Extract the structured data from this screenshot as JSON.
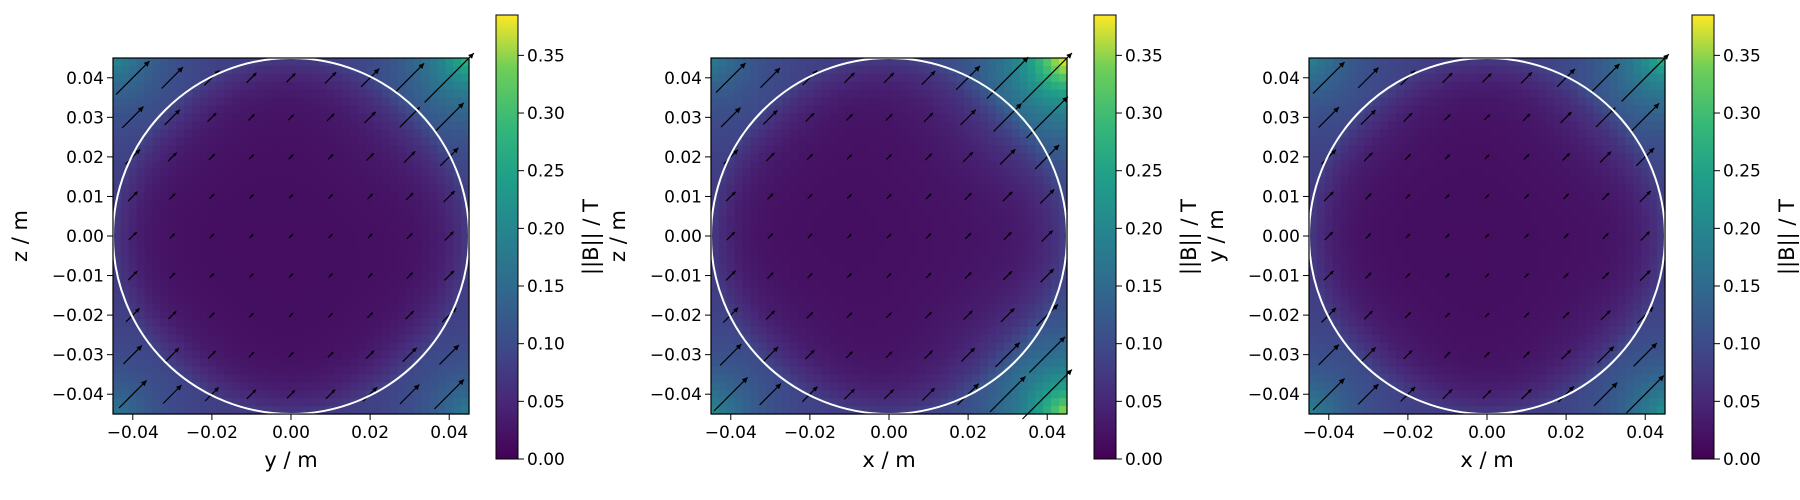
{
  "chart_data": [
    {
      "type": "heatmap",
      "title": "",
      "xlabel": "y / m",
      "ylabel": "z / m",
      "xlim": [
        -0.045,
        0.045
      ],
      "ylim": [
        -0.045,
        0.045
      ],
      "x_ticks": [
        "−0.04",
        "−0.02",
        "0.00",
        "0.02",
        "0.04"
      ],
      "y_ticks": [
        "−0.04",
        "−0.03",
        "−0.02",
        "−0.01",
        "0.00",
        "0.01",
        "0.02",
        "0.03",
        "0.04"
      ],
      "colorbar": {
        "label": "||B|| / T",
        "range": [
          0.0,
          0.385
        ],
        "ticks": [
          "0.00",
          "0.05",
          "0.10",
          "0.15",
          "0.20",
          "0.25",
          "0.30",
          "0.35"
        ],
        "colormap": "viridis"
      },
      "boundary_circle_radius": 0.045,
      "hotspots": [
        {
          "x": 0.045,
          "y": 0.045,
          "value": 0.2
        },
        {
          "x": -0.045,
          "y": 0.045,
          "value": 0.12
        },
        {
          "x": 0.045,
          "y": -0.045,
          "value": 0.1
        },
        {
          "x": -0.045,
          "y": -0.045,
          "value": 0.09
        }
      ]
    },
    {
      "type": "heatmap",
      "title": "",
      "xlabel": "x / m",
      "ylabel": "z / m",
      "xlim": [
        -0.045,
        0.045
      ],
      "ylim": [
        -0.045,
        0.045
      ],
      "x_ticks": [
        "−0.04",
        "−0.02",
        "0.00",
        "0.02",
        "0.04"
      ],
      "y_ticks": [
        "−0.04",
        "−0.03",
        "−0.02",
        "−0.01",
        "0.00",
        "0.01",
        "0.02",
        "0.03",
        "0.04"
      ],
      "colorbar": {
        "label": "||B|| / T",
        "range": [
          0.0,
          0.385
        ],
        "ticks": [
          "0.00",
          "0.05",
          "0.10",
          "0.15",
          "0.20",
          "0.25",
          "0.30",
          "0.35"
        ],
        "colormap": "viridis"
      },
      "boundary_circle_radius": 0.045,
      "hotspots": [
        {
          "x": 0.045,
          "y": 0.045,
          "value": 0.33
        },
        {
          "x": 0.045,
          "y": -0.045,
          "value": 0.27
        },
        {
          "x": -0.045,
          "y": 0.045,
          "value": 0.1
        },
        {
          "x": -0.045,
          "y": -0.045,
          "value": 0.12
        }
      ]
    },
    {
      "type": "heatmap",
      "title": "",
      "xlabel": "x / m",
      "ylabel": "y / m",
      "xlim": [
        -0.045,
        0.045
      ],
      "ylim": [
        -0.045,
        0.045
      ],
      "x_ticks": [
        "−0.04",
        "−0.02",
        "0.00",
        "0.02",
        "0.04"
      ],
      "y_ticks": [
        "−0.04",
        "−0.03",
        "−0.02",
        "−0.01",
        "0.00",
        "0.01",
        "0.02",
        "0.03",
        "0.04"
      ],
      "colorbar": {
        "label": "||B|| / T",
        "range": [
          0.0,
          0.385
        ],
        "ticks": [
          "0.00",
          "0.05",
          "0.10",
          "0.15",
          "0.20",
          "0.25",
          "0.30",
          "0.35"
        ],
        "colormap": "viridis"
      },
      "boundary_circle_radius": 0.045,
      "hotspots": [
        {
          "x": 0.045,
          "y": 0.045,
          "value": 0.19
        },
        {
          "x": 0.045,
          "y": -0.045,
          "value": 0.14
        },
        {
          "x": -0.045,
          "y": 0.045,
          "value": 0.11
        },
        {
          "x": -0.045,
          "y": -0.045,
          "value": 0.11
        }
      ]
    }
  ]
}
